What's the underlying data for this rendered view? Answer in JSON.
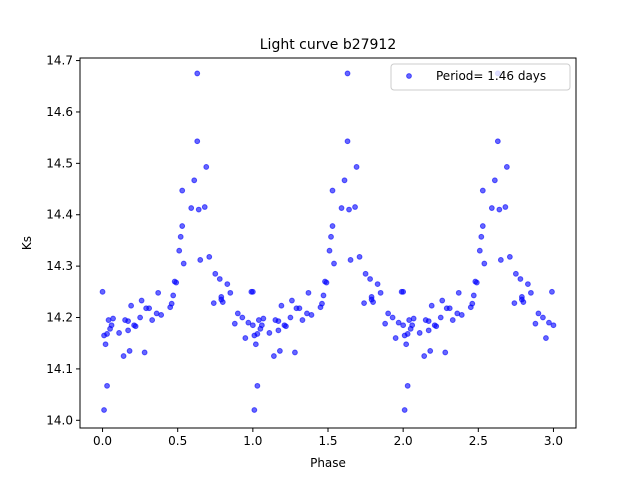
{
  "chart_data": {
    "type": "scatter",
    "title": "Light curve b27912",
    "xlabel": "Phase",
    "ylabel": "Ks",
    "xlim": [
      -0.15,
      3.15
    ],
    "ylim": [
      14.705,
      13.985
    ],
    "y_inverted": true,
    "xticks": [
      0.0,
      0.5,
      1.0,
      1.5,
      2.0,
      2.5,
      3.0
    ],
    "xtick_labels": [
      "0.0",
      "0.5",
      "1.0",
      "1.5",
      "2.0",
      "2.5",
      "3.0"
    ],
    "yticks": [
      14.0,
      14.1,
      14.2,
      14.3,
      14.4,
      14.5,
      14.6,
      14.7
    ],
    "ytick_labels": [
      "14.0",
      "14.1",
      "14.2",
      "14.3",
      "14.4",
      "14.5",
      "14.6",
      "14.7"
    ],
    "grid": false,
    "legend": {
      "position": "top-right",
      "label": "Period= 1.46 days"
    },
    "marker_color": "#0000ff",
    "marker_alpha": 0.6,
    "series": [
      {
        "name": "Period= 1.46 days",
        "points": [
          [
            0.0,
            14.25
          ],
          [
            0.01,
            14.02
          ],
          [
            0.01,
            14.165
          ],
          [
            0.02,
            14.148
          ],
          [
            0.03,
            14.067
          ],
          [
            0.03,
            14.168
          ],
          [
            0.04,
            14.195
          ],
          [
            0.05,
            14.178
          ],
          [
            0.06,
            14.185
          ],
          [
            0.07,
            14.198
          ],
          [
            0.11,
            14.17
          ],
          [
            0.14,
            14.125
          ],
          [
            0.15,
            14.195
          ],
          [
            0.17,
            14.193
          ],
          [
            0.17,
            14.175
          ],
          [
            0.18,
            14.135
          ],
          [
            0.19,
            14.223
          ],
          [
            0.21,
            14.185
          ],
          [
            0.22,
            14.183
          ],
          [
            0.25,
            14.2
          ],
          [
            0.26,
            14.233
          ],
          [
            0.28,
            14.132
          ],
          [
            0.29,
            14.218
          ],
          [
            0.31,
            14.218
          ],
          [
            0.33,
            14.195
          ],
          [
            0.36,
            14.208
          ],
          [
            0.37,
            14.248
          ],
          [
            0.39,
            14.205
          ],
          [
            0.45,
            14.22
          ],
          [
            0.46,
            14.227
          ],
          [
            0.47,
            14.243
          ],
          [
            0.48,
            14.27
          ],
          [
            0.49,
            14.268
          ],
          [
            0.51,
            14.33
          ],
          [
            0.52,
            14.357
          ],
          [
            0.53,
            14.378
          ],
          [
            0.53,
            14.447
          ],
          [
            0.54,
            14.305
          ],
          [
            0.59,
            14.413
          ],
          [
            0.61,
            14.467
          ],
          [
            0.63,
            14.543
          ],
          [
            0.63,
            14.675
          ],
          [
            0.64,
            14.41
          ],
          [
            0.65,
            14.312
          ],
          [
            0.68,
            14.415
          ],
          [
            0.69,
            14.493
          ],
          [
            0.71,
            14.318
          ],
          [
            0.74,
            14.228
          ],
          [
            0.75,
            14.285
          ],
          [
            0.78,
            14.275
          ],
          [
            0.79,
            14.24
          ],
          [
            0.79,
            14.235
          ],
          [
            0.8,
            14.23
          ],
          [
            0.83,
            14.265
          ],
          [
            0.85,
            14.248
          ],
          [
            0.88,
            14.188
          ],
          [
            0.9,
            14.208
          ],
          [
            0.93,
            14.2
          ],
          [
            0.95,
            14.16
          ],
          [
            0.97,
            14.19
          ],
          [
            0.99,
            14.25
          ],
          [
            1.0,
            14.185
          ]
        ]
      }
    ],
    "repeat_phases": [
      0,
      1,
      2
    ],
    "repeat_max_phase": 3.0
  }
}
